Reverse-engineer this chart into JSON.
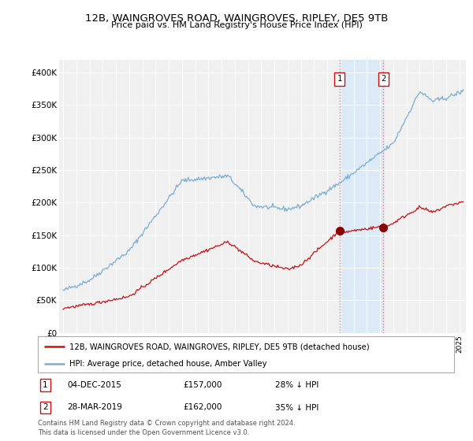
{
  "title": "12B, WAINGROVES ROAD, WAINGROVES, RIPLEY, DE5 9TB",
  "subtitle": "Price paid vs. HM Land Registry's House Price Index (HPI)",
  "ylabel_ticks": [
    "£0",
    "£50K",
    "£100K",
    "£150K",
    "£200K",
    "£250K",
    "£300K",
    "£350K",
    "£400K"
  ],
  "ytick_vals": [
    0,
    50000,
    100000,
    150000,
    200000,
    250000,
    300000,
    350000,
    400000
  ],
  "ylim": [
    0,
    420000
  ],
  "xlim_start": 1994.7,
  "xlim_end": 2025.5,
  "hpi_color": "#7aadd4",
  "property_color": "#cc1111",
  "marker1_x": 2015.92,
  "marker1_y": 157000,
  "marker2_x": 2019.25,
  "marker2_y": 162000,
  "marker1_label": "1",
  "marker2_label": "2",
  "marker1_date": "04-DEC-2015",
  "marker1_price": "£157,000",
  "marker1_hpi": "28% ↓ HPI",
  "marker2_date": "28-MAR-2019",
  "marker2_price": "£162,000",
  "marker2_hpi": "35% ↓ HPI",
  "legend_property": "12B, WAINGROVES ROAD, WAINGROVES, RIPLEY, DE5 9TB (detached house)",
  "legend_hpi": "HPI: Average price, detached house, Amber Valley",
  "footnote": "Contains HM Land Registry data © Crown copyright and database right 2024.\nThis data is licensed under the Open Government Licence v3.0.",
  "background_color": "#ffffff",
  "plot_bg_color": "#f0f0f0",
  "shaded_region_start": 2015.92,
  "shaded_region_end": 2019.25
}
